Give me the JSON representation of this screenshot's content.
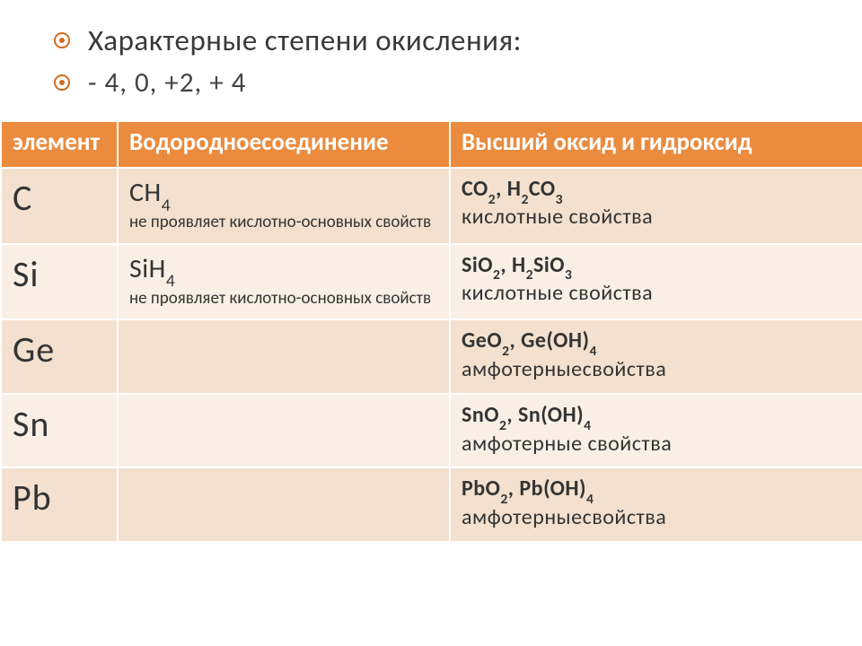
{
  "bullets": {
    "line1": "Характерные степени окисления:",
    "line2": " - 4, 0, +2, + 4"
  },
  "table": {
    "headers": {
      "col1": "элемент",
      "col2": "Водородноесоединение",
      "col3": "Высший оксид и гидроксид"
    },
    "rows": [
      {
        "elem": "C",
        "hydride_formula": "CH",
        "hydride_sub": "4",
        "hydride_desc": "не проявляет кислотно-основных свойств",
        "oxide_formula_html": "CO<sub>2</sub>, H<sub>2</sub>CO<sub>3</sub>",
        "oxide_desc": "кислотные свойства"
      },
      {
        "elem": "Si",
        "hydride_formula": "SiH",
        "hydride_sub": "4",
        "hydride_desc": "не проявляет кислотно-основных свойств",
        "oxide_formula_html": "SiO<sub>2</sub>, H<sub>2</sub>SiO<sub>3</sub>",
        "oxide_desc": "кислотные свойства"
      },
      {
        "elem": "Ge",
        "hydride_formula": "",
        "hydride_sub": "",
        "hydride_desc": "",
        "oxide_formula_html": "GeO<sub>2</sub>, Ge(OH)<sub>4</sub>",
        "oxide_desc": " амфотерныесвойства"
      },
      {
        "elem": "Sn",
        "hydride_formula": "",
        "hydride_sub": "",
        "hydride_desc": "",
        "oxide_formula_html": "SnO<sub>2</sub>, Sn(OH)<sub>4</sub>",
        "oxide_desc": "амфотерные свойства"
      },
      {
        "elem": "Pb",
        "hydride_formula": "",
        "hydride_sub": "",
        "hydride_desc": "",
        "oxide_formula_html": "PbO<sub>2</sub>, Pb(OH)<sub>4</sub>",
        "oxide_desc": "амфотерныесвойства"
      }
    ]
  },
  "colors": {
    "header_bg": "#eb8b3e",
    "row_odd": "#f3e0ce",
    "row_even": "#f9efe5",
    "bullet": "#d2691e"
  }
}
